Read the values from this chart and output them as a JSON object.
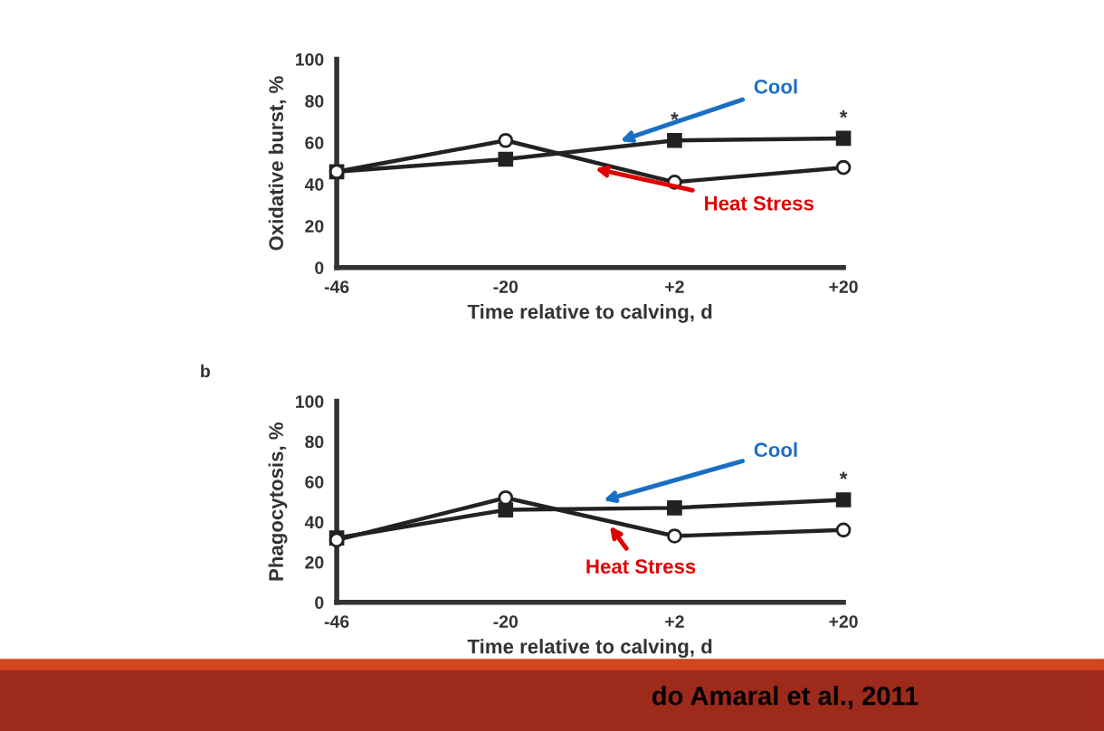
{
  "chart_data": [
    {
      "type": "line",
      "xlabel": "Time relative to calving, d",
      "ylabel": "Oxidative burst, %",
      "categories": [
        "-46",
        "-20",
        "+2",
        "+20"
      ],
      "ylim": [
        0,
        100
      ],
      "yticks": [
        0,
        20,
        40,
        60,
        80,
        100
      ],
      "grid": false,
      "legend": false,
      "series": [
        {
          "name": "Cool",
          "color": "#222222",
          "marker": "square",
          "values": [
            46,
            52,
            61,
            62
          ]
        },
        {
          "name": "Heat Stress",
          "color": "#222222",
          "marker": "circle",
          "values": [
            46,
            61,
            41,
            48
          ]
        }
      ],
      "annotations": [
        {
          "text": "*",
          "x": "+2",
          "y": 61
        },
        {
          "text": "*",
          "x": "+20",
          "y": 62
        }
      ]
    },
    {
      "type": "line",
      "xlabel": "Time relative to calving, d",
      "ylabel": "Phagocytosis, %",
      "categories": [
        "-46",
        "-20",
        "+2",
        "+20"
      ],
      "ylim": [
        0,
        100
      ],
      "yticks": [
        0,
        20,
        40,
        60,
        80,
        100
      ],
      "grid": false,
      "legend": false,
      "series": [
        {
          "name": "Cool",
          "color": "#222222",
          "marker": "square",
          "values": [
            32,
            46,
            47,
            51
          ]
        },
        {
          "name": "Heat Stress",
          "color": "#222222",
          "marker": "circle",
          "values": [
            31,
            52,
            33,
            36
          ]
        }
      ],
      "annotations": [
        "b",
        {
          "text": "*",
          "x": "+20",
          "y": 51
        },
        "do Amaral et al., 2011"
      ]
    }
  ]
}
